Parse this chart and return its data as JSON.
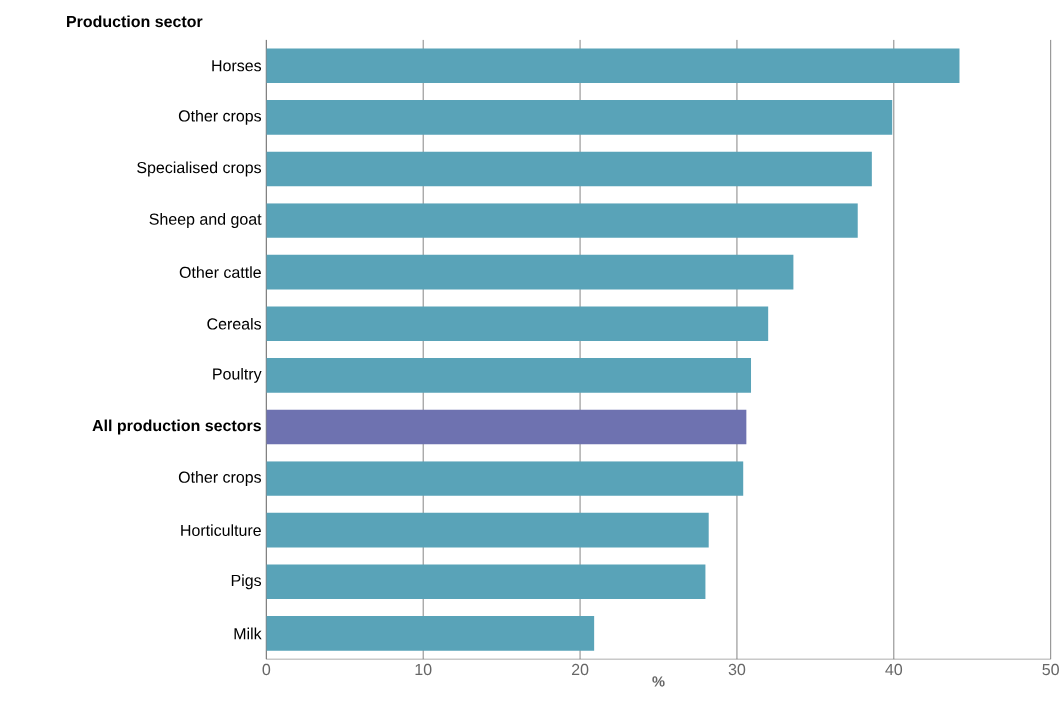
{
  "chart_data": {
    "type": "bar",
    "orientation": "horizontal",
    "title": "Production sector",
    "xlabel": "%",
    "categories": [
      "Horses",
      "Other crops",
      "Specialised crops",
      "Sheep and goat",
      "Other cattle",
      "Cereals",
      "Poultry",
      "**All production sectors**",
      "Other crops",
      "Horticulture",
      "Pigs",
      "Milk"
    ],
    "values": [
      44.2,
      39.9,
      38.6,
      37.7,
      33.6,
      32.0,
      30.9,
      30.6,
      30.4,
      28.2,
      28.0,
      20.9
    ],
    "colors": [
      "#59a3b8",
      "#59a3b8",
      "#59a3b8",
      "#59a3b8",
      "#59a3b8",
      "#59a3b8",
      "#59a3b8",
      "#6e72b0",
      "#59a3b8",
      "#59a3b8",
      "#59a3b8",
      "#59a3b8"
    ],
    "xlim": [
      0,
      50
    ],
    "xticks": [
      0,
      10,
      20,
      30,
      40,
      50
    ],
    "grid": "x"
  }
}
